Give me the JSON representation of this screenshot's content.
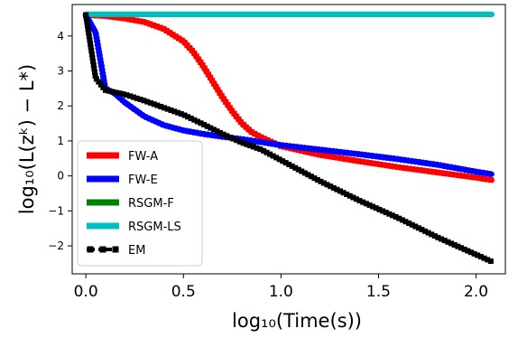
{
  "chart_data": {
    "type": "line",
    "xlabel": "log₁₀(Time(s))",
    "ylabel": "log₁₀(L(zᵏ) − L*)",
    "xlim": [
      -0.07,
      2.15
    ],
    "ylim": [
      -2.8,
      4.9
    ],
    "xticks": [
      0.0,
      0.5,
      1.0,
      1.5,
      2.0
    ],
    "xtick_labels": [
      "0.0",
      "0.5",
      "1.0",
      "1.5",
      "2.0"
    ],
    "yticks": [
      -2,
      -1,
      0,
      1,
      2,
      3,
      4
    ],
    "ytick_labels": [
      "−2",
      "−1",
      "0",
      "1",
      "2",
      "3",
      "4"
    ],
    "grid": false,
    "legend_position": "lower-left",
    "series": [
      {
        "name": "FW-A",
        "color": "#ff0000",
        "style": "solid-square-markers",
        "x": [
          0.0,
          0.1,
          0.2,
          0.3,
          0.4,
          0.5,
          0.55,
          0.6,
          0.65,
          0.7,
          0.75,
          0.8,
          0.85,
          0.9,
          1.0,
          1.2,
          1.4,
          1.6,
          1.8,
          2.0,
          2.08
        ],
        "y": [
          4.6,
          4.57,
          4.5,
          4.4,
          4.2,
          3.85,
          3.55,
          3.15,
          2.7,
          2.25,
          1.85,
          1.5,
          1.25,
          1.1,
          0.85,
          0.6,
          0.42,
          0.25,
          0.1,
          -0.05,
          -0.12
        ]
      },
      {
        "name": "FW-E",
        "color": "#0000ff",
        "style": "solid-circle-markers",
        "x": [
          0.0,
          0.05,
          0.1,
          0.15,
          0.2,
          0.3,
          0.4,
          0.5,
          0.6,
          0.7,
          0.8,
          1.0,
          1.2,
          1.4,
          1.6,
          1.8,
          2.0,
          2.08
        ],
        "y": [
          4.6,
          4.1,
          2.5,
          2.35,
          2.1,
          1.7,
          1.45,
          1.3,
          1.2,
          1.12,
          1.05,
          0.88,
          0.75,
          0.62,
          0.48,
          0.32,
          0.12,
          0.05
        ]
      },
      {
        "name": "RSGM-F",
        "color": "#008000",
        "style": "solid",
        "x": [
          0.0,
          2.08
        ],
        "y": [
          4.62,
          4.62
        ]
      },
      {
        "name": "RSGM-LS",
        "color": "#00bfbf",
        "style": "solid",
        "x": [
          0.0,
          2.08
        ],
        "y": [
          4.62,
          4.62
        ]
      },
      {
        "name": "EM",
        "color": "#000000",
        "style": "dashdot-square-markers",
        "x": [
          0.0,
          0.05,
          0.1,
          0.2,
          0.3,
          0.4,
          0.5,
          0.6,
          0.7,
          0.8,
          0.9,
          1.0,
          1.2,
          1.4,
          1.6,
          1.8,
          2.0,
          2.08
        ],
        "y": [
          4.6,
          2.8,
          2.45,
          2.33,
          2.15,
          1.95,
          1.75,
          1.48,
          1.2,
          0.95,
          0.75,
          0.45,
          -0.15,
          -0.7,
          -1.2,
          -1.75,
          -2.25,
          -2.45
        ]
      }
    ]
  }
}
